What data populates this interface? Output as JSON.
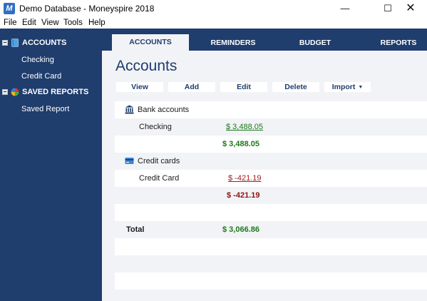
{
  "window": {
    "title": "Demo Database - Moneyspire 2018",
    "app_icon_letter": "M",
    "minimize": "—",
    "maximize": "☐",
    "close": "✕"
  },
  "menu": [
    "File",
    "Edit",
    "View",
    "Tools",
    "Help"
  ],
  "sidebar": {
    "groups": [
      {
        "label": "ACCOUNTS",
        "icon": "book-icon",
        "items": [
          "Checking",
          "Credit Card"
        ]
      },
      {
        "label": "SAVED REPORTS",
        "icon": "pie-chart-icon",
        "items": [
          "Saved Report"
        ]
      }
    ]
  },
  "tabs": [
    {
      "label": "ACCOUNTS",
      "active": true
    },
    {
      "label": "REMINDERS",
      "active": false
    },
    {
      "label": "BUDGET",
      "active": false
    },
    {
      "label": "REPORTS",
      "active": false
    }
  ],
  "page": {
    "title": "Accounts",
    "actions": [
      "View",
      "Add",
      "Edit",
      "Delete",
      "Import"
    ],
    "import_caret": "▼"
  },
  "accounts": {
    "bank": {
      "label": "Bank accounts",
      "icon": "bank-icon",
      "items": [
        {
          "name": "Checking",
          "balance": "$ 3,488.05"
        }
      ],
      "subtotal": "$ 3,488.05"
    },
    "credit": {
      "label": "Credit cards",
      "icon": "credit-card-icon",
      "items": [
        {
          "name": "Credit Card",
          "balance": "$ -421.19"
        }
      ],
      "subtotal": "$ -421.19"
    },
    "total_label": "Total",
    "total": "$ 3,066.86"
  },
  "colors": {
    "navy": "#1f3d6d",
    "positive": "#1b7a1b",
    "negative": "#a21e1e"
  }
}
